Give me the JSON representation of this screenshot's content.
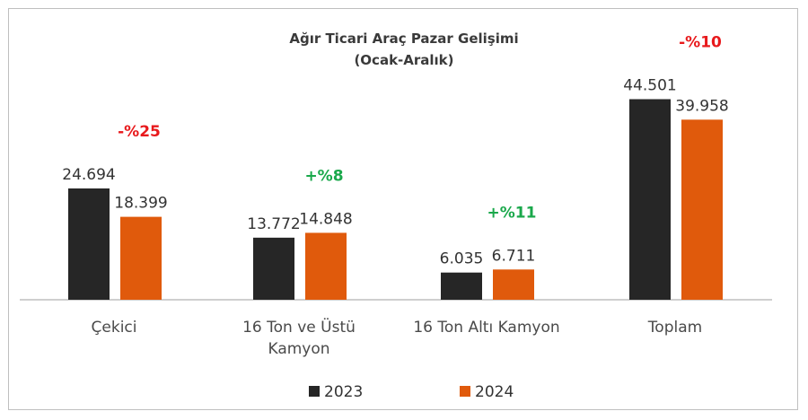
{
  "chart_data": {
    "type": "bar",
    "title": "Ağır Ticari Araç Pazar Gelişimi",
    "subtitle": "(Ocak-Aralık)",
    "categories": [
      [
        "Çekici"
      ],
      [
        "16 Ton ve Üstü",
        "Kamyon"
      ],
      [
        "16 Ton Altı Kamyon"
      ],
      [
        "Toplam"
      ]
    ],
    "series": [
      {
        "name": "2023",
        "color": "#262626",
        "values": [
          24694,
          13772,
          6035,
          44501
        ],
        "labels": [
          "24.694",
          "13.772",
          "6.035",
          "44.501"
        ]
      },
      {
        "name": "2024",
        "color": "#e05a0c",
        "values": [
          18399,
          14848,
          6711,
          39958
        ],
        "labels": [
          "18.399",
          "14.848",
          "6.711",
          "39.958"
        ]
      }
    ],
    "changes": [
      {
        "text": "-%25",
        "color": "#e8191c"
      },
      {
        "text": "+%8",
        "color": "#1aa84b"
      },
      {
        "text": "+%11",
        "color": "#1aa84b"
      },
      {
        "text": "-%10",
        "color": "#e8191c"
      }
    ],
    "ylim": [
      0,
      50000
    ],
    "grid": false,
    "legend_position": "bottom"
  }
}
